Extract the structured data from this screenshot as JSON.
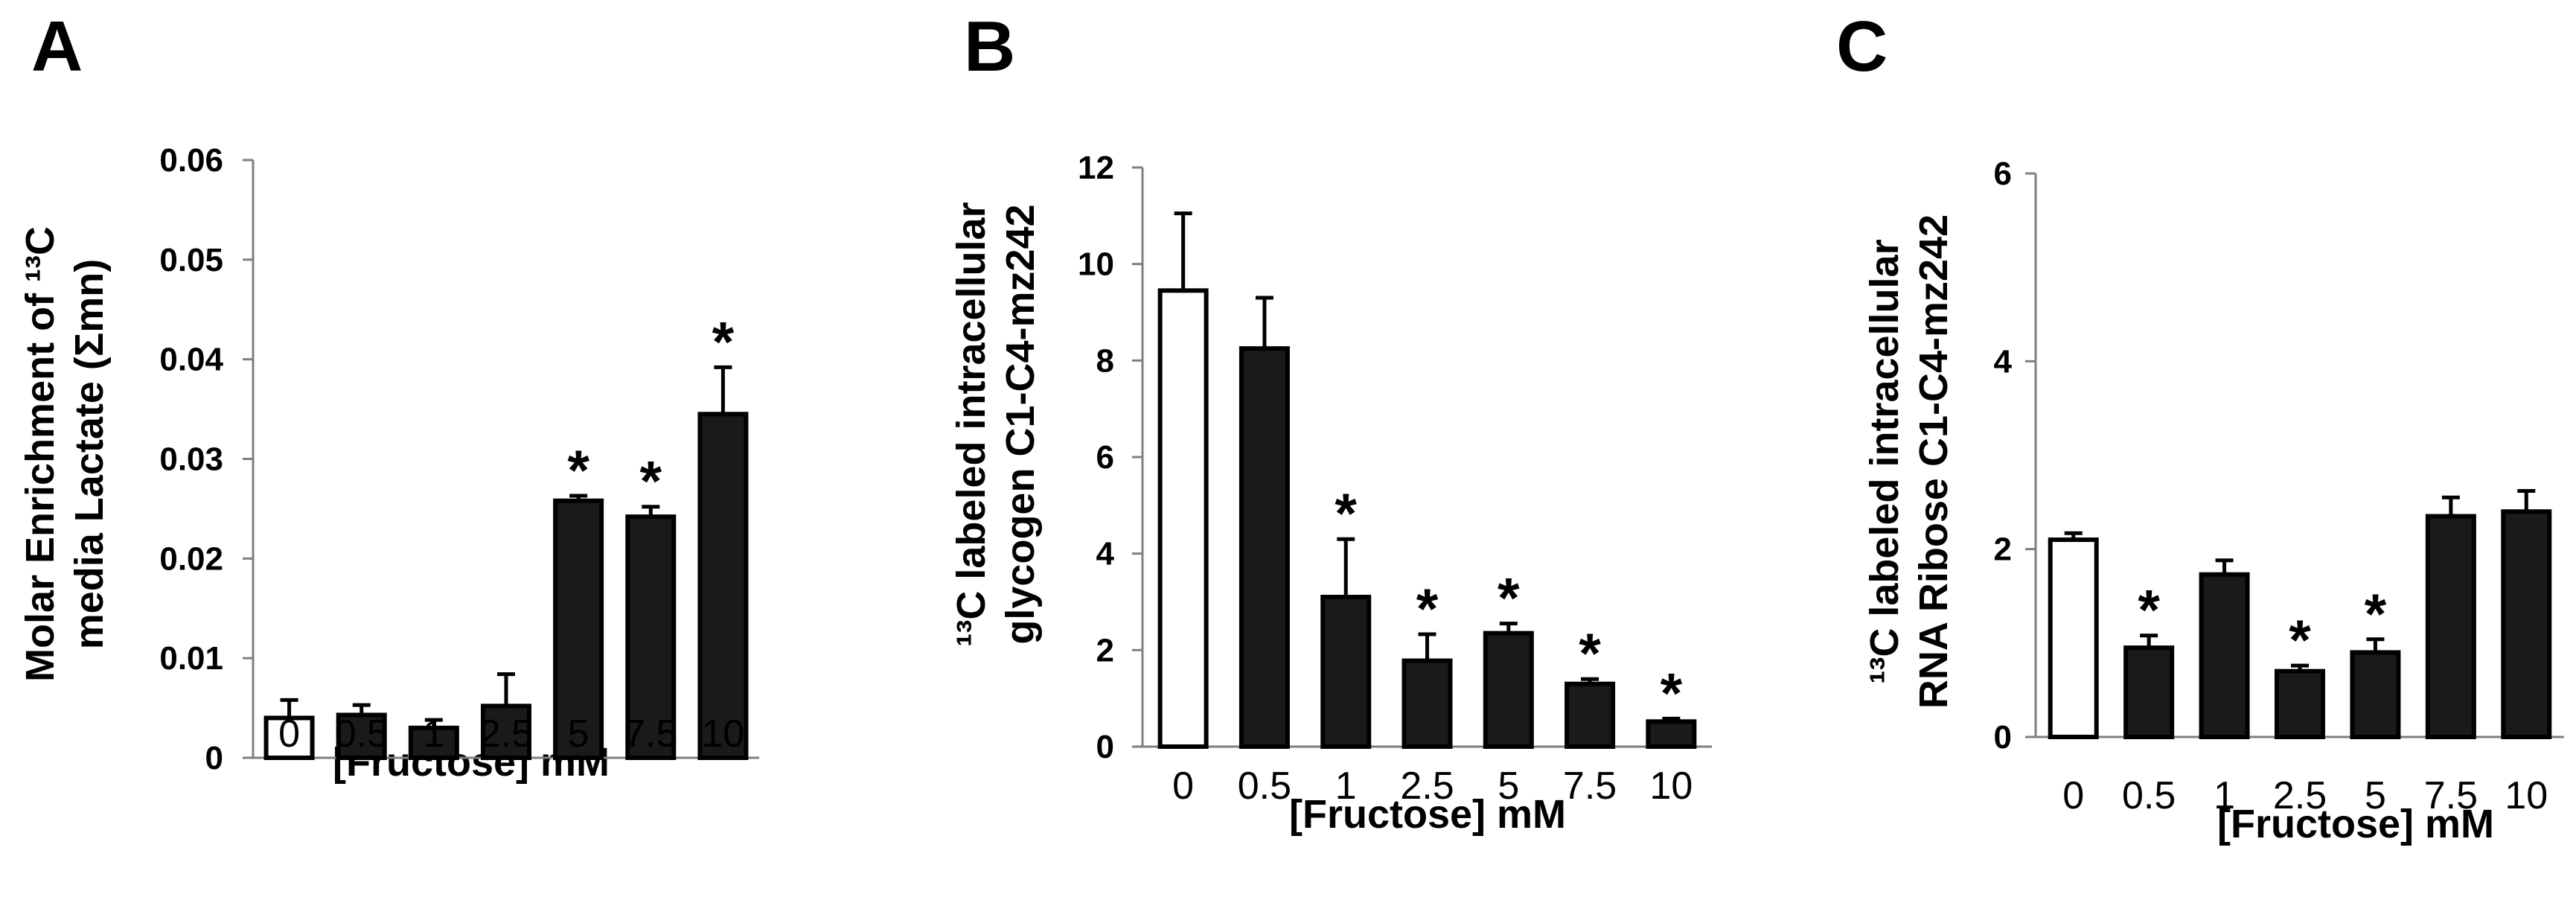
{
  "colors": {
    "control_fill": "#ffffff",
    "treated_fill": "#1a1a1a",
    "bar_stroke": "#000000",
    "axis": "#7f7f7f"
  },
  "chart_data": [
    {
      "panel": "A",
      "type": "bar",
      "categories": [
        "0",
        "0.5",
        "1",
        "2.5",
        "5",
        "7.5",
        "10"
      ],
      "values": [
        0.004,
        0.0043,
        0.003,
        0.0052,
        0.0258,
        0.0242,
        0.0345
      ],
      "errors": [
        0.0018,
        0.001,
        0.0008,
        0.0032,
        0.0005,
        0.001,
        0.0047
      ],
      "significant": [
        false,
        false,
        false,
        false,
        true,
        true,
        true
      ],
      "star_symbol": "*",
      "ylim": [
        0,
        0.06
      ],
      "yticks": [
        {
          "v": 0,
          "label": "0"
        },
        {
          "v": 0.01,
          "label": "0.01"
        },
        {
          "v": 0.02,
          "label": "0.02"
        },
        {
          "v": 0.03,
          "label": "0.03"
        },
        {
          "v": 0.04,
          "label": "0.04"
        },
        {
          "v": 0.05,
          "label": "0.05"
        },
        {
          "v": 0.06,
          "label": "0.06"
        }
      ],
      "xlabel": "[Fructose] mM",
      "ylabel_line1": "Molar Enrichment of ¹³C",
      "ylabel_line2": "media Lactate  (Σmn)",
      "grid": false
    },
    {
      "panel": "B",
      "type": "bar",
      "categories": [
        "0",
        "0.5",
        "1",
        "2.5",
        "5",
        "7.5",
        "10"
      ],
      "values": [
        9.45,
        8.25,
        3.1,
        1.78,
        2.35,
        1.3,
        0.52
      ],
      "errors": [
        1.6,
        1.05,
        1.2,
        0.55,
        0.2,
        0.1,
        0.06
      ],
      "significant": [
        false,
        false,
        true,
        true,
        true,
        true,
        true
      ],
      "star_symbol": "*",
      "ylim": [
        0,
        12
      ],
      "yticks": [
        {
          "v": 0,
          "label": "0"
        },
        {
          "v": 2,
          "label": "2"
        },
        {
          "v": 4,
          "label": "4"
        },
        {
          "v": 6,
          "label": "6"
        },
        {
          "v": 8,
          "label": "8"
        },
        {
          "v": 10,
          "label": "10"
        },
        {
          "v": 12,
          "label": "12"
        }
      ],
      "xlabel": "[Fructose] mM",
      "ylabel_line1": "¹³C labeled intracellular",
      "ylabel_line2": "glycogen C1-C4-mz242",
      "grid": false
    },
    {
      "panel": "C",
      "type": "bar",
      "categories": [
        "0",
        "0.5",
        "1",
        "2.5",
        "5",
        "7.5",
        "10"
      ],
      "values": [
        2.1,
        0.95,
        1.73,
        0.7,
        0.9,
        2.35,
        2.4
      ],
      "errors": [
        0.07,
        0.13,
        0.15,
        0.06,
        0.14,
        0.2,
        0.22
      ],
      "significant": [
        false,
        true,
        false,
        true,
        true,
        false,
        false
      ],
      "star_symbol": "*",
      "ylim": [
        0,
        6
      ],
      "yticks": [
        {
          "v": 0,
          "label": "0"
        },
        {
          "v": 2,
          "label": "2"
        },
        {
          "v": 4,
          "label": "4"
        },
        {
          "v": 6,
          "label": "6"
        }
      ],
      "xlabel": "[Fructose] mM",
      "ylabel_line1": "¹³C labeled intracellular",
      "ylabel_line2": "RNA Ribose C1-C4-mz242",
      "grid": false
    }
  ]
}
